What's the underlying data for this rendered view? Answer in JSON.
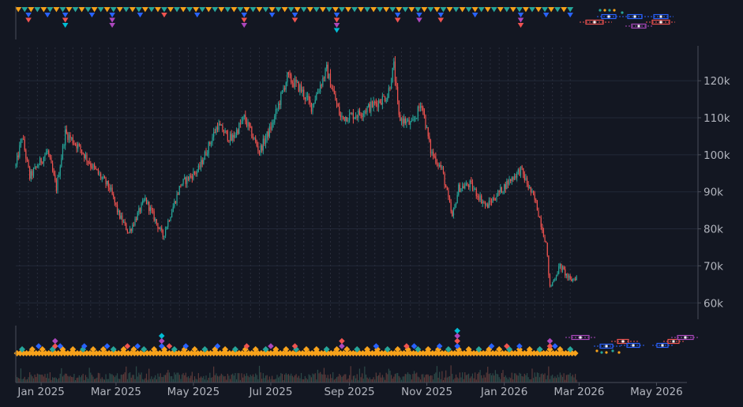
{
  "colors": {
    "background": "#131722",
    "grid": "#232838",
    "axis_text": "#b2b5be",
    "candle_up": "#26a69a",
    "candle_down": "#ef5350",
    "marker_orange": "#f7a21b",
    "marker_green": "#26a69a",
    "marker_blue": "#2962ff",
    "marker_purple": "#ab47bc",
    "marker_red": "#ef5350",
    "marker_cyan": "#00bcd4"
  },
  "chart_data": {
    "type": "candlestick",
    "ylim": [
      56000,
      129000
    ],
    "ytick_labels": [
      "60k",
      "70k",
      "80k",
      "90k",
      "100k",
      "110k",
      "120k"
    ],
    "ytick_values": [
      60000,
      70000,
      80000,
      90000,
      100000,
      110000,
      120000
    ],
    "xlim": [
      "2024-12-12",
      "2026-05-25"
    ],
    "xtick_labels": [
      "Jan 2025",
      "Mar 2025",
      "May 2025",
      "Jul 2025",
      "Sep 2025",
      "Nov 2025",
      "Jan 2026",
      "Mar 2026",
      "May 2026"
    ],
    "xtick_dates": [
      "2025-01-01",
      "2025-03-01",
      "2025-05-01",
      "2025-07-01",
      "2025-09-01",
      "2025-11-01",
      "2026-01-01",
      "2026-03-01",
      "2026-05-01"
    ],
    "price_path": [
      [
        "2024-12-12",
        97000
      ],
      [
        "2024-12-17",
        105000
      ],
      [
        "2024-12-23",
        94000
      ],
      [
        "2025-01-06",
        101000
      ],
      [
        "2025-01-13",
        91000
      ],
      [
        "2025-01-20",
        106000
      ],
      [
        "2025-01-31",
        102000
      ],
      [
        "2025-02-10",
        97000
      ],
      [
        "2025-02-24",
        91000
      ],
      [
        "2025-03-03",
        84000
      ],
      [
        "2025-03-11",
        79000
      ],
      [
        "2025-03-24",
        88000
      ],
      [
        "2025-04-07",
        78000
      ],
      [
        "2025-04-21",
        92000
      ],
      [
        "2025-05-05",
        96000
      ],
      [
        "2025-05-20",
        108000
      ],
      [
        "2025-05-31",
        104000
      ],
      [
        "2025-06-10",
        110000
      ],
      [
        "2025-06-22",
        101000
      ],
      [
        "2025-07-02",
        108000
      ],
      [
        "2025-07-14",
        121000
      ],
      [
        "2025-07-24",
        118000
      ],
      [
        "2025-08-02",
        113000
      ],
      [
        "2025-08-14",
        123000
      ],
      [
        "2025-08-25",
        110000
      ],
      [
        "2025-09-08",
        111000
      ],
      [
        "2025-09-22",
        114000
      ],
      [
        "2025-10-01",
        116000
      ],
      [
        "2025-10-06",
        124000
      ],
      [
        "2025-10-10",
        110000
      ],
      [
        "2025-10-20",
        108000
      ],
      [
        "2025-10-28",
        114000
      ],
      [
        "2025-11-04",
        101000
      ],
      [
        "2025-11-13",
        96000
      ],
      [
        "2025-11-21",
        83000
      ],
      [
        "2025-11-26",
        91000
      ],
      [
        "2025-12-05",
        92000
      ],
      [
        "2025-12-18",
        86000
      ],
      [
        "2026-01-05",
        93000
      ],
      [
        "2026-01-14",
        96000
      ],
      [
        "2026-01-26",
        87000
      ],
      [
        "2026-02-03",
        76000
      ],
      [
        "2026-02-06",
        64000
      ],
      [
        "2026-02-14",
        70000
      ],
      [
        "2026-02-22",
        66000
      ],
      [
        "2026-02-27",
        67000
      ]
    ]
  }
}
